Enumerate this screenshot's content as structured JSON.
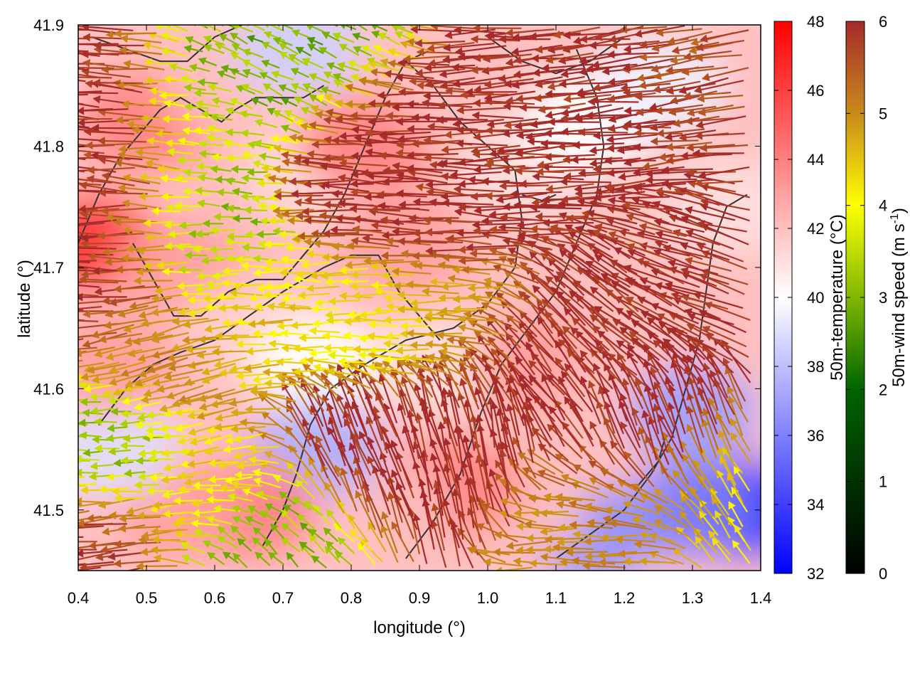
{
  "chart_data": {
    "type": "heatmap",
    "subtype": "scalar field with wind vectors and contour lines",
    "xlabel": "longitude (°)",
    "ylabel": "latitude (°)",
    "xlim": [
      0.4,
      1.4
    ],
    "ylim": [
      41.45,
      41.9
    ],
    "x_ticks": [
      "0.4",
      "0.5",
      "0.6",
      "0.7",
      "0.8",
      "0.9",
      "1.0",
      "1.1",
      "1.2",
      "1.3",
      "1.4"
    ],
    "y_ticks": [
      "41.5",
      "41.6",
      "41.7",
      "41.8",
      "41.9"
    ],
    "grid": false,
    "temperature_colorbar": {
      "label": "50m-temperature (°C)",
      "range": [
        32,
        48
      ],
      "ticks": [
        "32",
        "34",
        "36",
        "38",
        "40",
        "42",
        "44",
        "46",
        "48"
      ],
      "colors": [
        "#0000ff",
        "#ffffff",
        "#ff0000"
      ]
    },
    "wind_colorbar": {
      "label": "50m-wind speed (m s-1)",
      "label_main": "50m-wind speed (m s",
      "label_sup": "-1",
      "label_end": ")",
      "range": [
        0,
        6
      ],
      "ticks": [
        "0",
        "1",
        "2",
        "3",
        "4",
        "5",
        "6"
      ],
      "colors": [
        "#000000",
        "#006400",
        "#7fb800",
        "#ffff00",
        "#d4a017",
        "#c0741c",
        "#a52a2a"
      ]
    },
    "temperature_regions": [
      {
        "lon": 0.42,
        "lat": 41.72,
        "temp": 46.5
      },
      {
        "lon": 0.5,
        "lat": 41.82,
        "temp": 44
      },
      {
        "lon": 0.55,
        "lat": 41.7,
        "temp": 43
      },
      {
        "lon": 0.62,
        "lat": 41.85,
        "temp": 42
      },
      {
        "lon": 0.72,
        "lat": 41.88,
        "temp": 38.5
      },
      {
        "lon": 0.75,
        "lat": 41.78,
        "temp": 41
      },
      {
        "lon": 0.82,
        "lat": 41.8,
        "temp": 44
      },
      {
        "lon": 0.88,
        "lat": 41.72,
        "temp": 43
      },
      {
        "lon": 0.95,
        "lat": 41.85,
        "temp": 42
      },
      {
        "lon": 1.05,
        "lat": 41.78,
        "temp": 41
      },
      {
        "lon": 1.15,
        "lat": 41.82,
        "temp": 40
      },
      {
        "lon": 1.25,
        "lat": 41.85,
        "temp": 39.5
      },
      {
        "lon": 1.35,
        "lat": 41.75,
        "temp": 41
      },
      {
        "lon": 0.65,
        "lat": 41.65,
        "temp": 41.5
      },
      {
        "lon": 0.75,
        "lat": 41.62,
        "temp": 40
      },
      {
        "lon": 0.92,
        "lat": 41.62,
        "temp": 41
      },
      {
        "lon": 1.08,
        "lat": 41.62,
        "temp": 43
      },
      {
        "lon": 1.2,
        "lat": 41.6,
        "temp": 42
      },
      {
        "lon": 1.3,
        "lat": 41.58,
        "temp": 37
      },
      {
        "lon": 1.38,
        "lat": 41.5,
        "temp": 32.5
      },
      {
        "lon": 1.3,
        "lat": 41.5,
        "temp": 36
      },
      {
        "lon": 1.15,
        "lat": 41.48,
        "temp": 36.5
      },
      {
        "lon": 1.05,
        "lat": 41.5,
        "temp": 42
      },
      {
        "lon": 0.95,
        "lat": 41.52,
        "temp": 44
      },
      {
        "lon": 0.85,
        "lat": 41.5,
        "temp": 42
      },
      {
        "lon": 0.75,
        "lat": 41.55,
        "temp": 37.5
      },
      {
        "lon": 0.65,
        "lat": 41.5,
        "temp": 44
      },
      {
        "lon": 0.55,
        "lat": 41.5,
        "temp": 43
      },
      {
        "lon": 0.45,
        "lat": 41.55,
        "temp": 39
      },
      {
        "lon": 0.45,
        "lat": 41.62,
        "temp": 43
      }
    ],
    "wind_regions": [
      {
        "lon": 0.45,
        "lat": 41.8,
        "speed": 6,
        "u": -1,
        "v": 0.05
      },
      {
        "lon": 0.45,
        "lat": 41.7,
        "speed": 6,
        "u": -1,
        "v": 0.0
      },
      {
        "lon": 0.62,
        "lat": 41.8,
        "speed": 2.5,
        "u": -1,
        "v": 0.1
      },
      {
        "lon": 0.62,
        "lat": 41.72,
        "speed": 2.2,
        "u": -1,
        "v": 0.0
      },
      {
        "lon": 0.72,
        "lat": 41.85,
        "speed": 2.0,
        "u": -0.8,
        "v": 0.4
      },
      {
        "lon": 0.85,
        "lat": 41.78,
        "speed": 6,
        "u": -1,
        "v": 0.02
      },
      {
        "lon": 0.95,
        "lat": 41.75,
        "speed": 6,
        "u": -1,
        "v": 0.05
      },
      {
        "lon": 1.1,
        "lat": 41.8,
        "speed": 6,
        "u": -1,
        "v": -0.05
      },
      {
        "lon": 1.25,
        "lat": 41.82,
        "speed": 6,
        "u": -1,
        "v": -0.1
      },
      {
        "lon": 1.35,
        "lat": 41.85,
        "speed": 5.5,
        "u": -1,
        "v": -0.15
      },
      {
        "lon": 0.7,
        "lat": 41.66,
        "speed": 3.5,
        "u": -1,
        "v": 0.0
      },
      {
        "lon": 0.85,
        "lat": 41.65,
        "speed": 3.0,
        "u": -1,
        "v": 0.0
      },
      {
        "lon": 0.95,
        "lat": 41.66,
        "speed": 4.0,
        "u": -1,
        "v": 0.0
      },
      {
        "lon": 0.55,
        "lat": 41.63,
        "speed": 4.5,
        "u": -1,
        "v": -0.3
      },
      {
        "lon": 0.48,
        "lat": 41.55,
        "speed": 2.0,
        "u": -1,
        "v": 0.0
      },
      {
        "lon": 0.6,
        "lat": 41.52,
        "speed": 3.5,
        "u": -1,
        "v": -0.2
      },
      {
        "lon": 0.85,
        "lat": 41.55,
        "speed": 6,
        "u": -0.4,
        "v": 1.0
      },
      {
        "lon": 0.95,
        "lat": 41.55,
        "speed": 6,
        "u": -0.2,
        "v": 1.0
      },
      {
        "lon": 1.1,
        "lat": 41.62,
        "speed": 6,
        "u": -0.6,
        "v": 0.8
      },
      {
        "lon": 1.22,
        "lat": 41.65,
        "speed": 6,
        "u": -0.8,
        "v": 0.6
      },
      {
        "lon": 1.32,
        "lat": 41.7,
        "speed": 6,
        "u": -1,
        "v": 0.3
      },
      {
        "lon": 1.25,
        "lat": 41.55,
        "speed": 6,
        "u": -0.3,
        "v": 0.9
      },
      {
        "lon": 1.38,
        "lat": 41.5,
        "speed": 3.5,
        "u": -0.5,
        "v": 0.8
      },
      {
        "lon": 1.2,
        "lat": 41.48,
        "speed": 4.5,
        "u": -1,
        "v": 0.0
      },
      {
        "lon": 0.45,
        "lat": 41.47,
        "speed": 6,
        "u": -1,
        "v": -0.1
      },
      {
        "lon": 0.68,
        "lat": 41.47,
        "speed": 2.0,
        "u": -0.6,
        "v": 0.6
      }
    ],
    "contours": [
      [
        [
          0.4,
          41.72
        ],
        [
          0.43,
          41.76
        ],
        [
          0.46,
          41.79
        ],
        [
          0.49,
          41.81
        ],
        [
          0.52,
          41.83
        ],
        [
          0.55,
          41.84
        ],
        [
          0.58,
          41.83
        ],
        [
          0.61,
          41.82
        ],
        [
          0.63,
          41.83
        ],
        [
          0.66,
          41.84
        ],
        [
          0.7,
          41.84
        ],
        [
          0.73,
          41.84
        ],
        [
          0.76,
          41.85
        ]
      ],
      [
        [
          0.42,
          41.89
        ],
        [
          0.47,
          41.88
        ],
        [
          0.52,
          41.87
        ],
        [
          0.56,
          41.87
        ],
        [
          0.6,
          41.89
        ],
        [
          0.64,
          41.9
        ]
      ],
      [
        [
          0.48,
          41.72
        ],
        [
          0.5,
          41.7
        ],
        [
          0.52,
          41.68
        ],
        [
          0.54,
          41.66
        ],
        [
          0.58,
          41.66
        ],
        [
          0.62,
          41.68
        ],
        [
          0.66,
          41.69
        ],
        [
          0.7,
          41.69
        ],
        [
          0.73,
          41.71
        ],
        [
          0.76,
          41.73
        ],
        [
          0.79,
          41.76
        ],
        [
          0.82,
          41.8
        ],
        [
          0.85,
          41.84
        ],
        [
          0.88,
          41.87
        ],
        [
          0.92,
          41.88
        ]
      ],
      [
        [
          0.43,
          41.57
        ],
        [
          0.47,
          41.6
        ],
        [
          0.51,
          41.62
        ],
        [
          0.55,
          41.63
        ],
        [
          0.6,
          41.64
        ],
        [
          0.65,
          41.66
        ],
        [
          0.7,
          41.68
        ],
        [
          0.76,
          41.7
        ],
        [
          0.8,
          41.71
        ],
        [
          0.84,
          41.71
        ],
        [
          0.87,
          41.68
        ],
        [
          0.9,
          41.66
        ],
        [
          0.93,
          41.64
        ]
      ],
      [
        [
          0.67,
          41.47
        ],
        [
          0.7,
          41.5
        ],
        [
          0.72,
          41.53
        ],
        [
          0.74,
          41.57
        ],
        [
          0.77,
          41.6
        ],
        [
          0.82,
          41.62
        ],
        [
          0.88,
          41.64
        ],
        [
          0.95,
          41.65
        ],
        [
          1.0,
          41.67
        ],
        [
          1.04,
          41.7
        ],
        [
          1.05,
          41.74
        ],
        [
          1.04,
          41.78
        ],
        [
          1.0,
          41.8
        ],
        [
          0.96,
          41.82
        ],
        [
          0.92,
          41.85
        ],
        [
          0.88,
          41.87
        ]
      ],
      [
        [
          0.88,
          41.46
        ],
        [
          0.92,
          41.49
        ],
        [
          0.96,
          41.53
        ],
        [
          0.99,
          41.58
        ],
        [
          1.02,
          41.62
        ],
        [
          1.06,
          41.65
        ],
        [
          1.1,
          41.68
        ],
        [
          1.13,
          41.72
        ],
        [
          1.16,
          41.76
        ],
        [
          1.17,
          41.8
        ],
        [
          1.16,
          41.84
        ],
        [
          1.13,
          41.88
        ]
      ],
      [
        [
          1.1,
          41.46
        ],
        [
          1.15,
          41.48
        ],
        [
          1.2,
          41.5
        ],
        [
          1.24,
          41.53
        ],
        [
          1.27,
          41.56
        ],
        [
          1.29,
          41.6
        ],
        [
          1.31,
          41.64
        ],
        [
          1.32,
          41.68
        ],
        [
          1.33,
          41.72
        ],
        [
          1.35,
          41.75
        ],
        [
          1.38,
          41.76
        ]
      ],
      [
        [
          1.0,
          41.89
        ],
        [
          1.05,
          41.87
        ],
        [
          1.1,
          41.86
        ],
        [
          1.15,
          41.87
        ],
        [
          1.2,
          41.89
        ]
      ],
      [
        [
          1.22,
          41.52
        ],
        [
          1.25,
          41.54
        ],
        [
          1.26,
          41.56
        ]
      ],
      [
        [
          1.05,
          41.76
        ],
        [
          1.08,
          41.755
        ],
        [
          1.1,
          41.76
        ]
      ]
    ]
  }
}
